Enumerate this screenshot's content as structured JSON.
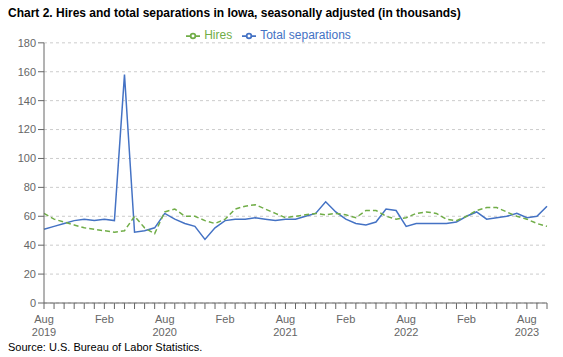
{
  "chart_data": {
    "type": "line",
    "title": "Chart 2. Hires and total separations in Iowa, seasonally adjusted (in thousands)",
    "annotations": [
      "Source: U.S. Bureau of Labor Statistics."
    ],
    "categories": [
      "Aug\n2019",
      null,
      null,
      null,
      null,
      null,
      "Feb",
      null,
      null,
      null,
      null,
      null,
      "Aug\n2020",
      null,
      null,
      null,
      null,
      null,
      "Feb",
      null,
      null,
      null,
      null,
      null,
      "Aug\n2021",
      null,
      null,
      null,
      null,
      null,
      "Feb",
      null,
      null,
      null,
      null,
      null,
      "Aug\n2022",
      null,
      null,
      null,
      null,
      null,
      "Feb",
      null,
      null,
      null,
      null,
      null,
      "Aug\n2023",
      null,
      null
    ],
    "series": [
      {
        "name": "Total separations",
        "color": "#4472C4",
        "line_style": "solid",
        "values": [
          51,
          53,
          55,
          57,
          58,
          57,
          58,
          57,
          158,
          49,
          50,
          52,
          62,
          58,
          55,
          53,
          44,
          52,
          57,
          58,
          58,
          59,
          58,
          57,
          58,
          58,
          60,
          62,
          70,
          63,
          58,
          55,
          54,
          56,
          65,
          64,
          53,
          55,
          55,
          55,
          55,
          56,
          60,
          63,
          58,
          59,
          60,
          62,
          59,
          60,
          67
        ]
      },
      {
        "name": "Hires",
        "color": "#70AD47",
        "line_style": "dashed",
        "values": [
          62,
          58,
          56,
          54,
          52,
          51,
          50,
          49,
          50,
          60,
          52,
          48,
          63,
          65,
          60,
          60,
          57,
          55,
          58,
          65,
          67,
          68,
          65,
          62,
          59,
          60,
          61,
          62,
          61,
          62,
          61,
          59,
          64,
          64,
          60,
          58,
          59,
          62,
          63,
          62,
          58,
          57,
          60,
          64,
          66,
          66,
          63,
          60,
          58,
          55,
          53
        ]
      }
    ],
    "ylim": [
      0,
      180
    ],
    "yticks": [
      0,
      20,
      40,
      60,
      80,
      100,
      120,
      140,
      160,
      180
    ],
    "grid": true,
    "legend": "top"
  }
}
